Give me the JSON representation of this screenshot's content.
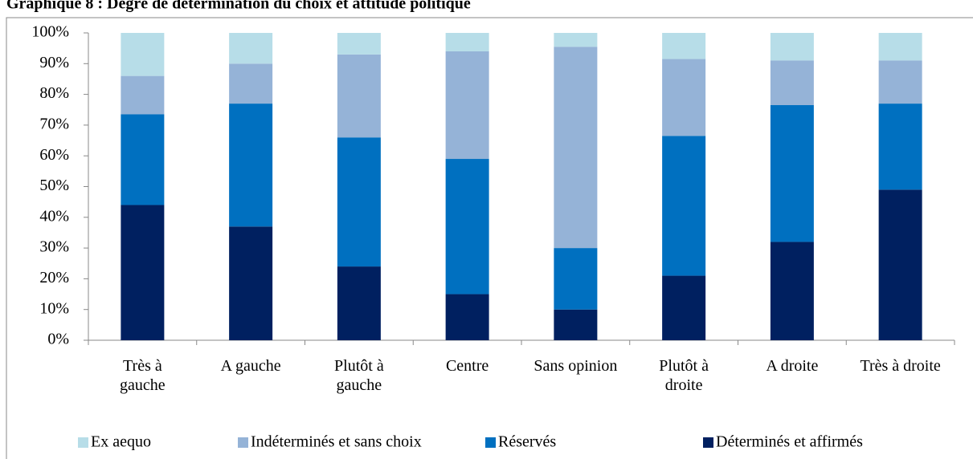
{
  "chart_data": {
    "type": "stacked_bar",
    "title": "Graphique 8 : Degré de détermination du choix et attitude politique",
    "categories": [
      "Très à gauche",
      "A gauche",
      "Plutôt à gauche",
      "Centre",
      "Sans opinion",
      "Plutôt à droite",
      "A droite",
      "Très à droite"
    ],
    "series": [
      {
        "name": "Déterminés et affirmés",
        "color": "#002060",
        "values": [
          44,
          37,
          24,
          15,
          10,
          21,
          32,
          49
        ]
      },
      {
        "name": "Réservés",
        "color": "#0070c0",
        "values": [
          29.5,
          40,
          42,
          44,
          20,
          45.5,
          44.5,
          28
        ]
      },
      {
        "name": "Indéterminés et sans choix",
        "color": "#95b3d7",
        "values": [
          12.5,
          13,
          27,
          35,
          65.5,
          25,
          14.5,
          14
        ]
      },
      {
        "name": "Ex aequo",
        "color": "#b7dde8",
        "values": [
          14,
          10,
          7,
          6,
          4.5,
          8.5,
          9,
          9
        ]
      }
    ],
    "legend_order": [
      "Ex aequo",
      "Indéterminés et sans choix",
      "Réservés",
      "Déterminés et affirmés"
    ],
    "ylim": [
      0,
      100
    ],
    "yticks": [
      {
        "value": 0,
        "label": "0%"
      },
      {
        "value": 10,
        "label": "10%"
      },
      {
        "value": 20,
        "label": "20%"
      },
      {
        "value": 30,
        "label": "30%"
      },
      {
        "value": 40,
        "label": "40%"
      },
      {
        "value": 50,
        "label": "50%"
      },
      {
        "value": 60,
        "label": "60%"
      },
      {
        "value": 70,
        "label": "70%"
      },
      {
        "value": 80,
        "label": "80%"
      },
      {
        "value": 90,
        "label": "90%"
      },
      {
        "value": 100,
        "label": "100%"
      }
    ],
    "grid": false,
    "legend": "bottom"
  }
}
